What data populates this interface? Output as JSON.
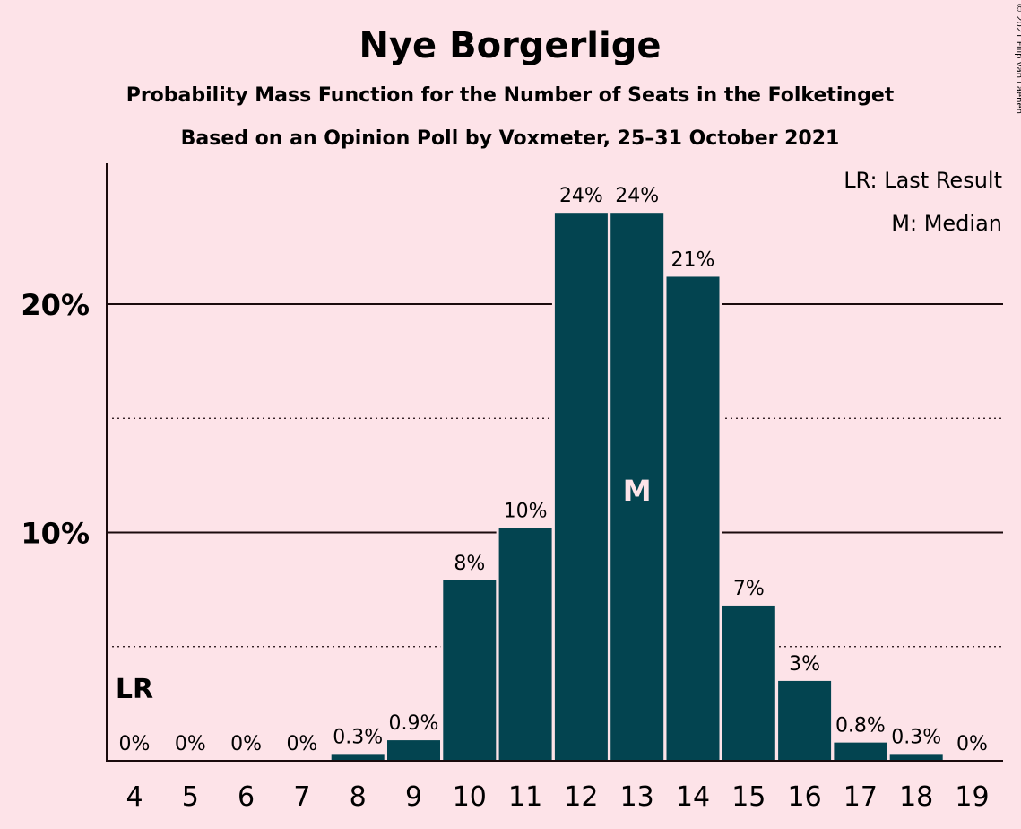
{
  "chart_data": {
    "type": "bar",
    "title": "Nye Borgerlige",
    "subtitle": "Probability Mass Function for the Number of Seats in the Folketinget",
    "subtitle2": "Based on an Opinion Poll by Voxmeter, 25–31 October 2021",
    "copyright": "© 2021 Filip van Laenen",
    "categories": [
      "4",
      "5",
      "6",
      "7",
      "8",
      "9",
      "10",
      "11",
      "12",
      "13",
      "14",
      "15",
      "16",
      "17",
      "18",
      "19"
    ],
    "values": [
      0,
      0,
      0,
      0,
      0.3,
      0.9,
      7.9,
      10.2,
      24.0,
      24.0,
      21.2,
      6.8,
      3.5,
      0.8,
      0.3,
      0
    ],
    "value_labels": [
      "0%",
      "0%",
      "0%",
      "0%",
      "0.3%",
      "0.9%",
      "8%",
      "10%",
      "24%",
      "24%",
      "21%",
      "7%",
      "3%",
      "0.8%",
      "0.3%",
      "0%"
    ],
    "ylim": [
      0,
      26
    ],
    "yticks": [
      {
        "value": 10,
        "label": "10%"
      },
      {
        "value": 20,
        "label": "20%"
      }
    ],
    "dotted_gridlines": [
      5,
      15
    ],
    "last_result_category": "4",
    "last_result_marker": "LR",
    "median_category": "13",
    "median_marker": "M",
    "legend": [
      "LR: Last Result",
      "M: Median"
    ],
    "legend_position": "top-right",
    "colors": {
      "background": "#fde3e8",
      "bar": "#034450",
      "text": "#1a0a0c"
    }
  }
}
